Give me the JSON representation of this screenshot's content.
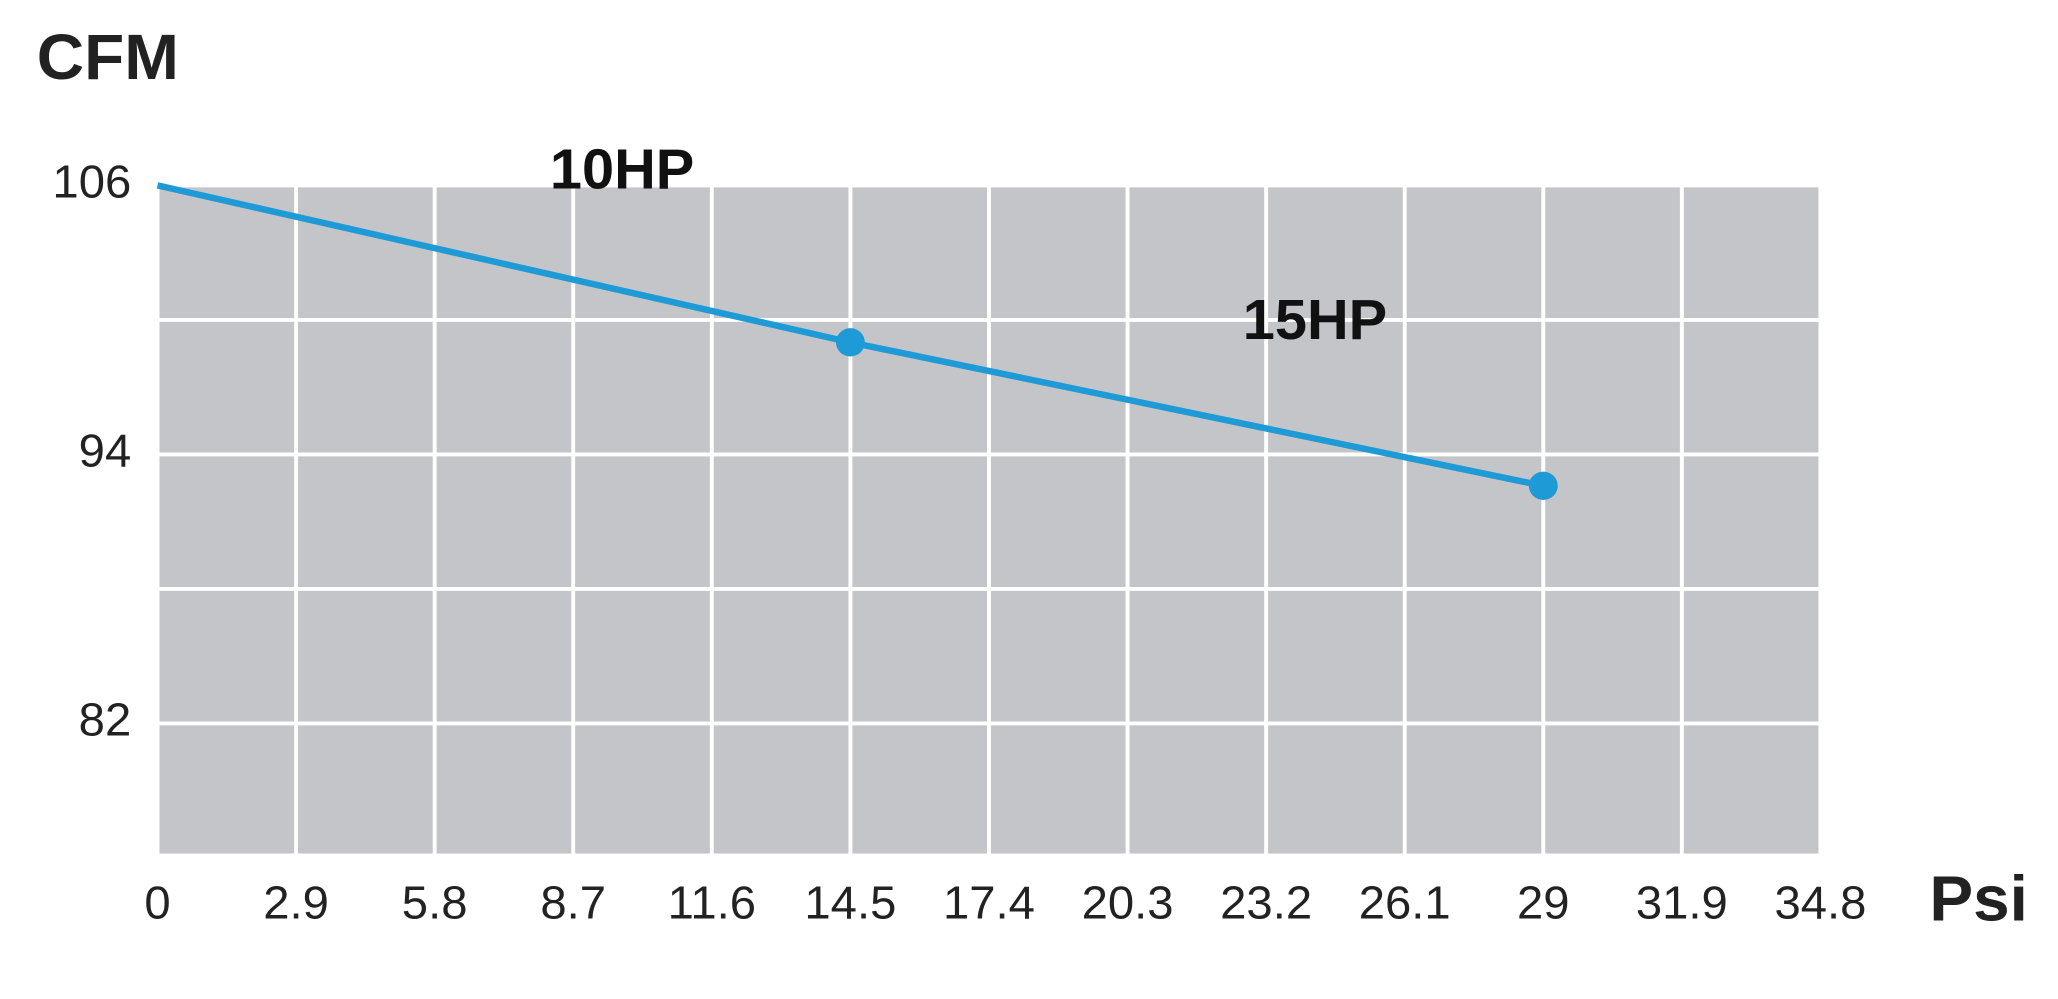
{
  "chart_data": {
    "type": "line",
    "y_label": "CFM",
    "x_label": "Psi",
    "x": [
      0,
      14.5,
      29
    ],
    "series": [
      {
        "name": "CFM",
        "color": "#1e9ad6",
        "values": [
          106,
          99,
          92.6
        ],
        "show_markers": [
          false,
          true,
          true
        ]
      }
    ],
    "annotations": [
      "10HP",
      "15HP"
    ],
    "xlim": [
      0,
      34.8
    ],
    "xticks": [
      0,
      2.9,
      5.8,
      8.7,
      11.6,
      14.5,
      17.4,
      20.3,
      23.2,
      26.1,
      29,
      31.9,
      34.8
    ],
    "ylim": [
      76.2,
      106
    ],
    "yticks": [
      82,
      94,
      106
    ],
    "yminor": [
      88,
      100
    ],
    "grid": true,
    "plot_background": "#c4c5c8"
  }
}
